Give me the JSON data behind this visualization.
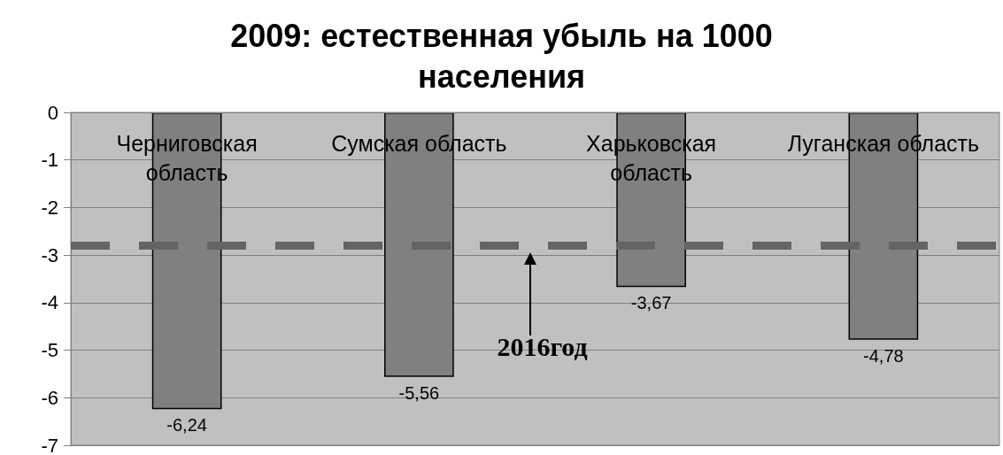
{
  "chart_data": {
    "type": "bar",
    "title": "2009: естественная убыль на 1000\nнаселения",
    "categories": [
      "Черниговская область",
      "Сумская область",
      "Харьковская область",
      "Луганская область"
    ],
    "values": [
      -6.24,
      -5.56,
      -3.67,
      -4.78
    ],
    "color": "#808080",
    "value_labels": [
      "-6,24",
      "-5,56",
      "-3,67",
      "-4,78"
    ],
    "ylim": [
      -7,
      0
    ],
    "yticks": [
      0,
      -1,
      -2,
      -3,
      -4,
      -5,
      -6,
      -7
    ],
    "grid": "y",
    "ref_lines": [
      {
        "axis": "y",
        "value": -2.8,
        "color": "#646464",
        "line_style": "dashed"
      }
    ],
    "annotations": [
      "2016год"
    ]
  }
}
